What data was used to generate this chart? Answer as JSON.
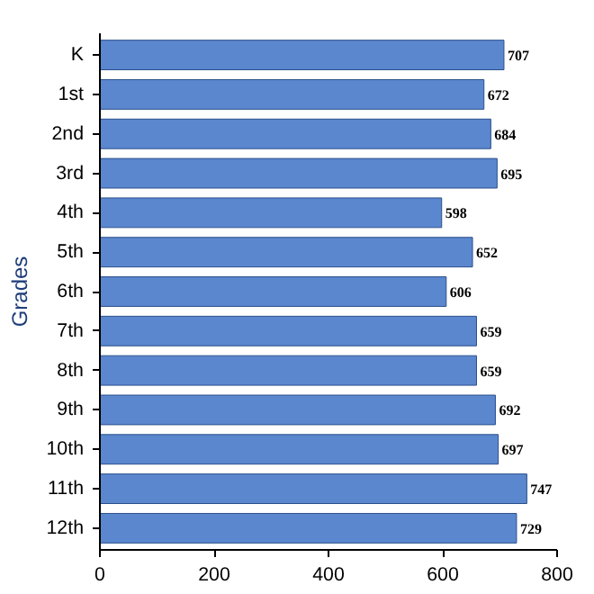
{
  "chart_data": {
    "type": "bar",
    "orientation": "horizontal",
    "ylabel": "Grades",
    "categories": [
      "K",
      "1st",
      "2nd",
      "3rd",
      "4th",
      "5th",
      "6th",
      "7th",
      "8th",
      "9th",
      "10th",
      "11th",
      "12th"
    ],
    "values": [
      707,
      672,
      684,
      695,
      598,
      652,
      606,
      659,
      659,
      692,
      697,
      747,
      729
    ],
    "color": "#5b87cf",
    "xlim": [
      0,
      800
    ],
    "xticks": [
      0,
      200,
      400,
      600,
      800
    ],
    "data_labels": true,
    "grid": false
  }
}
